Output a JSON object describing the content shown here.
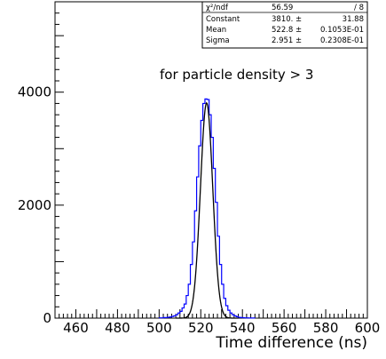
{
  "chart_data": {
    "type": "line",
    "xlabel": "Time difference (ns)",
    "ylabel": "",
    "xlim": [
      450,
      600
    ],
    "ylim": [
      0,
      5600
    ],
    "x_ticks": [
      "460",
      "480",
      "500",
      "520",
      "540",
      "560",
      "580",
      "600"
    ],
    "y_ticks": [
      "0",
      "2000",
      "4000"
    ],
    "annotation": "for particle density > 3",
    "histogram": {
      "color": "#0000ff",
      "bin_width": 1,
      "bins": [
        {
          "x": 500,
          "y": 5
        },
        {
          "x": 501,
          "y": 5
        },
        {
          "x": 502,
          "y": 10
        },
        {
          "x": 503,
          "y": 10
        },
        {
          "x": 504,
          "y": 15
        },
        {
          "x": 505,
          "y": 20
        },
        {
          "x": 506,
          "y": 30
        },
        {
          "x": 507,
          "y": 40
        },
        {
          "x": 508,
          "y": 60
        },
        {
          "x": 509,
          "y": 90
        },
        {
          "x": 510,
          "y": 120
        },
        {
          "x": 511,
          "y": 180
        },
        {
          "x": 512,
          "y": 250
        },
        {
          "x": 513,
          "y": 400
        },
        {
          "x": 514,
          "y": 600
        },
        {
          "x": 515,
          "y": 950
        },
        {
          "x": 516,
          "y": 1350
        },
        {
          "x": 517,
          "y": 1900
        },
        {
          "x": 518,
          "y": 2500
        },
        {
          "x": 519,
          "y": 3050
        },
        {
          "x": 520,
          "y": 3500
        },
        {
          "x": 521,
          "y": 3800
        },
        {
          "x": 522,
          "y": 3880
        },
        {
          "x": 523,
          "y": 3870
        },
        {
          "x": 524,
          "y": 3600
        },
        {
          "x": 525,
          "y": 3200
        },
        {
          "x": 526,
          "y": 2650
        },
        {
          "x": 527,
          "y": 2050
        },
        {
          "x": 528,
          "y": 1450
        },
        {
          "x": 529,
          "y": 950
        },
        {
          "x": 530,
          "y": 600
        },
        {
          "x": 531,
          "y": 350
        },
        {
          "x": 532,
          "y": 220
        },
        {
          "x": 533,
          "y": 140
        },
        {
          "x": 534,
          "y": 90
        },
        {
          "x": 535,
          "y": 60
        },
        {
          "x": 536,
          "y": 40
        },
        {
          "x": 537,
          "y": 25
        },
        {
          "x": 538,
          "y": 15
        },
        {
          "x": 539,
          "y": 10
        },
        {
          "x": 540,
          "y": 8
        },
        {
          "x": 541,
          "y": 5
        },
        {
          "x": 542,
          "y": 4
        },
        {
          "x": 543,
          "y": 3
        },
        {
          "x": 544,
          "y": 2
        },
        {
          "x": 545,
          "y": 2
        }
      ]
    },
    "fit": {
      "color": "#000000",
      "constant": 3810,
      "mean": 522.8,
      "sigma": 2.951
    },
    "stats_box": {
      "rows": [
        {
          "label": "χ²/ndf",
          "value": "56.59",
          "error": "/    8"
        },
        {
          "label": "Constant",
          "value": "3810. ±",
          "error": "31.88"
        },
        {
          "label": "Mean",
          "value": "522.8 ±",
          "error": "0.1053E-01"
        },
        {
          "label": "Sigma",
          "value": "2.951 ±",
          "error": "0.2308E-01"
        }
      ]
    }
  }
}
